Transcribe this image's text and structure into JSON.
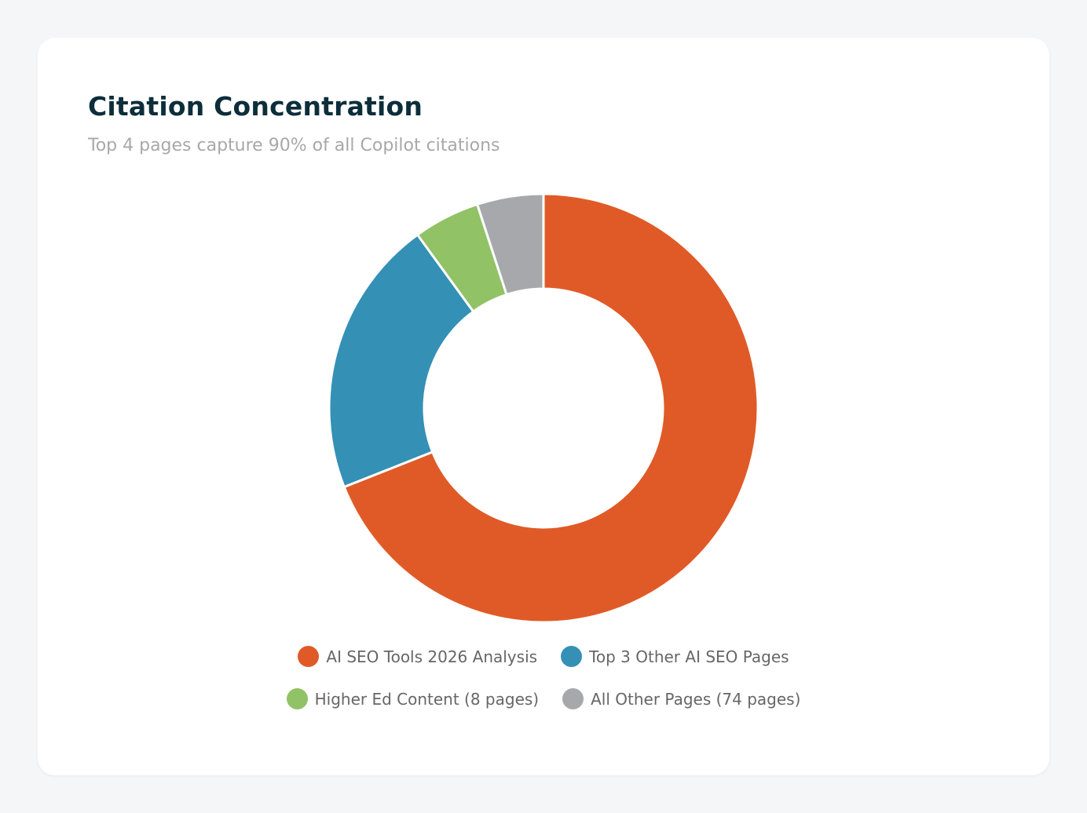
{
  "chart_data": {
    "type": "pie",
    "variant": "donut",
    "title": "Citation Concentration",
    "subtitle": "Top 4 pages capture 90% of all Copilot citations",
    "legend_position": "bottom",
    "categories": [
      "AI SEO Tools 2026 Analysis",
      "Top 3 Other AI SEO Pages",
      "Higher Ed Content (8 pages)",
      "All Other Pages (74 pages)"
    ],
    "values": [
      69,
      21,
      5,
      5
    ],
    "colors": [
      "#e05a27",
      "#3490b5",
      "#91c266",
      "#a7a8ab"
    ]
  }
}
